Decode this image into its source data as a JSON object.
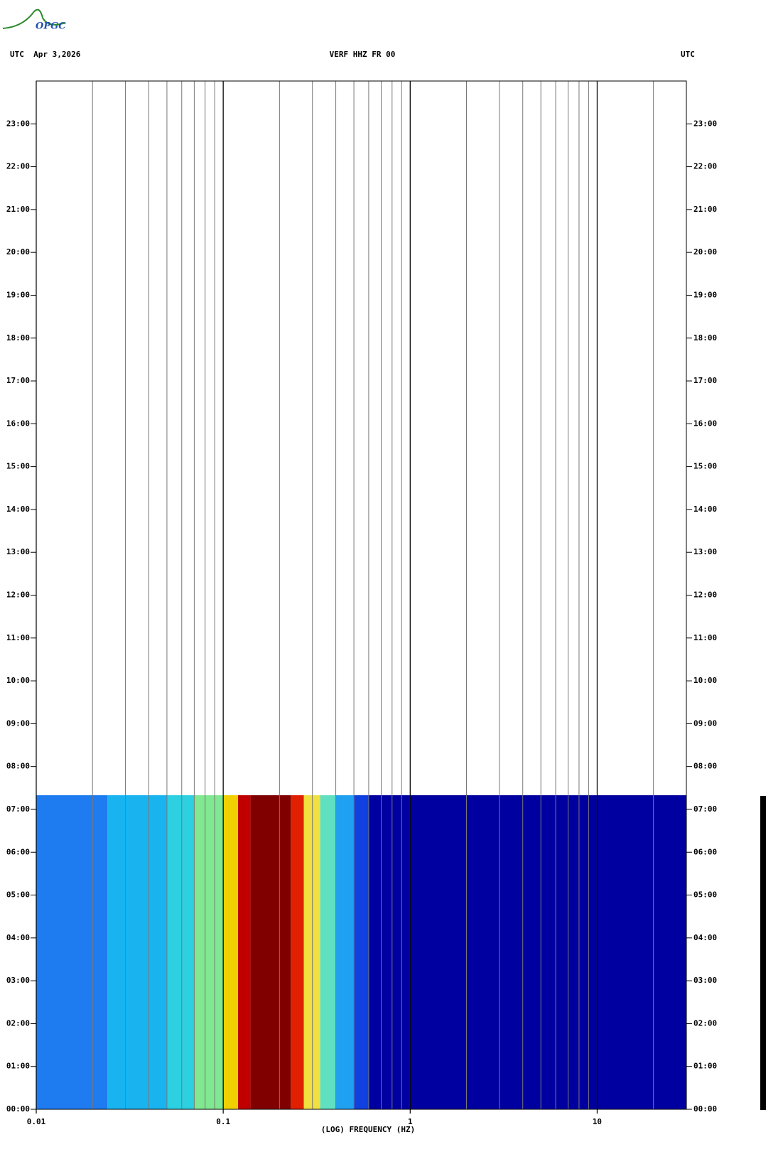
{
  "logo": "OPGC",
  "chart_data": {
    "type": "spectrogram",
    "title": "VERF HHZ FR 00",
    "date_label": "UTC  Apr 3,2026",
    "right_label": "UTC",
    "xlabel": "(LOG) FREQUENCY (HZ)",
    "xscale": "log",
    "xlim": [
      0.01,
      30
    ],
    "xticks": [
      0.01,
      0.1,
      1,
      10
    ],
    "xgrid": [
      0.02,
      0.03,
      0.04,
      0.05,
      0.06,
      0.07,
      0.08,
      0.09,
      0.1,
      0.2,
      0.3,
      0.4,
      0.5,
      0.6,
      0.7,
      0.8,
      0.9,
      1,
      2,
      3,
      4,
      5,
      6,
      7,
      8,
      9,
      10,
      20
    ],
    "ylim": [
      0,
      24
    ],
    "yticks": [
      {
        "value": 0,
        "label": "00:00"
      },
      {
        "value": 1,
        "label": "01:00"
      },
      {
        "value": 2,
        "label": "02:00"
      },
      {
        "value": 3,
        "label": "03:00"
      },
      {
        "value": 4,
        "label": "04:00"
      },
      {
        "value": 5,
        "label": "05:00"
      },
      {
        "value": 6,
        "label": "06:00"
      },
      {
        "value": 7,
        "label": "07:00"
      },
      {
        "value": 8,
        "label": "08:00"
      },
      {
        "value": 9,
        "label": "09:00"
      },
      {
        "value": 10,
        "label": "10:00"
      },
      {
        "value": 11,
        "label": "11:00"
      },
      {
        "value": 12,
        "label": "12:00"
      },
      {
        "value": 13,
        "label": "13:00"
      },
      {
        "value": 14,
        "label": "14:00"
      },
      {
        "value": 15,
        "label": "15:00"
      },
      {
        "value": 16,
        "label": "16:00"
      },
      {
        "value": 17,
        "label": "17:00"
      },
      {
        "value": 18,
        "label": "18:00"
      },
      {
        "value": 19,
        "label": "19:00"
      },
      {
        "value": 20,
        "label": "20:00"
      },
      {
        "value": 21,
        "label": "21:00"
      },
      {
        "value": 22,
        "label": "22:00"
      },
      {
        "value": 23,
        "label": "23:00"
      }
    ],
    "time_range": [
      0,
      7.33
    ],
    "bins": [
      0.01,
      0.024,
      0.05,
      0.07,
      0.1,
      0.12,
      0.14,
      0.23,
      0.27,
      0.33,
      0.4,
      0.5,
      0.6,
      30
    ],
    "bin_colors": [
      "#1e7cf0",
      "#19b4f0",
      "#2cd0e0",
      "#80e890",
      "#f0d000",
      "#c00000",
      "#800000",
      "#e02000",
      "#f0e040",
      "#60e0c0",
      "#20a0f0",
      "#1040e0",
      "#0000a0"
    ]
  }
}
